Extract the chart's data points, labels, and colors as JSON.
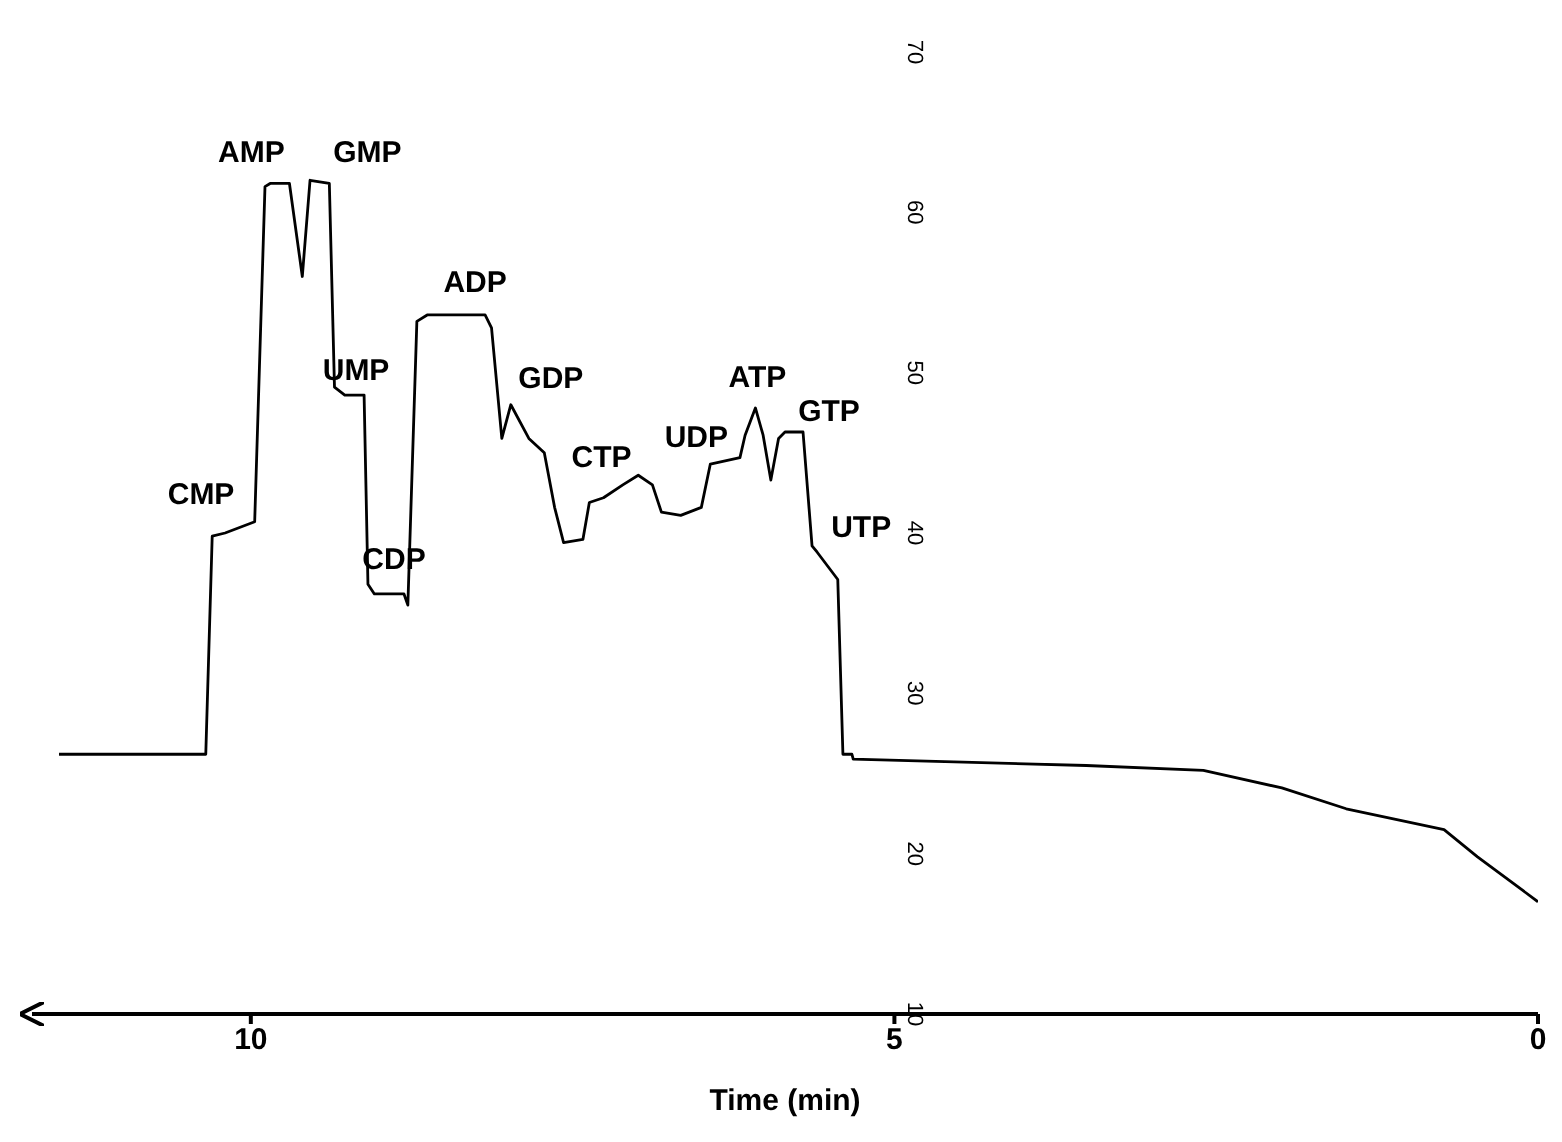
{
  "chart_data": {
    "type": "line",
    "xlabel": "Time (min)",
    "xlim": [
      11.7,
      0
    ],
    "xticks": [
      10,
      5,
      0
    ],
    "ylim": [
      10,
      70
    ],
    "yticks": [
      10,
      20,
      30,
      40,
      50,
      60,
      70
    ],
    "grid": false,
    "legend": false,
    "marker": "none",
    "line_style": "solid",
    "x": [
      11.49,
      10.35,
      10.3,
      10.2,
      9.97,
      9.89,
      9.85,
      9.7,
      9.6,
      9.54,
      9.39,
      9.35,
      9.27,
      9.12,
      9.09,
      9.04,
      8.81,
      8.78,
      8.71,
      8.63,
      8.18,
      8.13,
      8.05,
      7.98,
      7.84,
      7.72,
      7.64,
      7.57,
      7.42,
      7.37,
      7.26,
      7.11,
      6.99,
      6.88,
      6.81,
      6.66,
      6.5,
      6.43,
      6.2,
      6.16,
      6.08,
      6.02,
      5.96,
      5.9,
      5.85,
      5.71,
      5.64,
      5.6,
      5.44,
      5.4,
      5.33,
      5.32,
      3.51,
      2.6,
      1.99,
      1.49,
      0.73,
      0.47,
      0
    ],
    "series": [
      {
        "color": "#000000",
        "values": [
          26.2,
          26.2,
          39.8,
          40.0,
          40.7,
          61.6,
          61.8,
          61.8,
          56.0,
          62.0,
          61.8,
          49.1,
          48.6,
          48.6,
          36.8,
          36.2,
          36.2,
          35.5,
          53.2,
          53.6,
          53.6,
          52.8,
          45.9,
          48.0,
          45.9,
          45.0,
          41.6,
          39.4,
          39.6,
          41.9,
          42.2,
          43.0,
          43.6,
          43.0,
          41.3,
          41.1,
          41.6,
          44.3,
          44.7,
          46.1,
          47.8,
          46.1,
          43.3,
          45.9,
          46.3,
          46.3,
          39.2,
          38.8,
          37.1,
          26.2,
          26.2,
          25.9,
          25.5,
          25.2,
          24.1,
          22.8,
          21.5,
          19.8,
          17.0
        ]
      }
    ],
    "annotations": [
      {
        "text": "CMP",
        "x": 10.2,
        "y": 40.0
      },
      {
        "text": "AMP",
        "x": 9.7,
        "y": 61.8
      },
      {
        "text": "GMP",
        "x": 9.39,
        "y": 61.8
      },
      {
        "text": "UMP",
        "x": 9.12,
        "y": 48.6
      },
      {
        "text": "CDP",
        "x": 8.81,
        "y": 36.2
      },
      {
        "text": "ADP",
        "x": 8.18,
        "y": 53.6
      },
      {
        "text": "GDP",
        "x": 7.98,
        "y": 48.0
      },
      {
        "text": "CTP",
        "x": 7.26,
        "y": 42.2
      },
      {
        "text": "UDP",
        "x": 6.43,
        "y": 44.3
      },
      {
        "text": "ATP",
        "x": 6.08,
        "y": 47.8
      },
      {
        "text": "GTP",
        "x": 5.71,
        "y": 46.3
      },
      {
        "text": "UTP",
        "x": 5.6,
        "y": 38.8
      }
    ]
  }
}
